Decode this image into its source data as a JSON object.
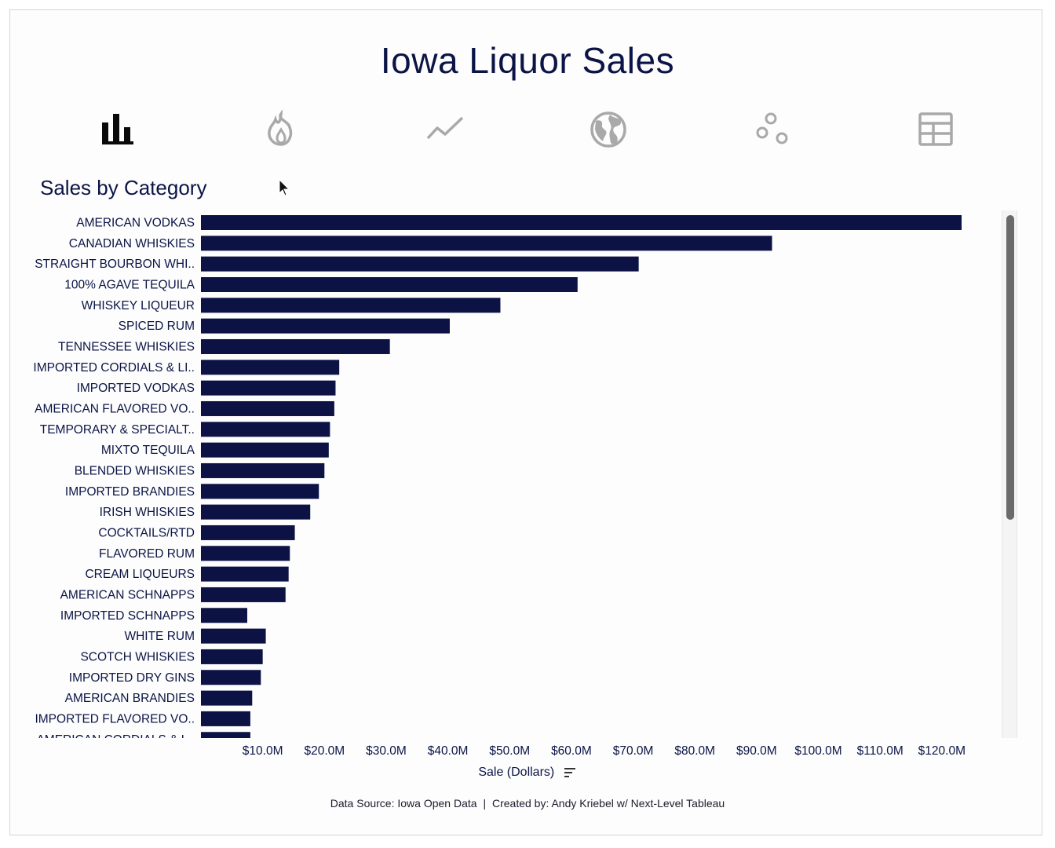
{
  "header": {
    "title": "Iowa Liquor Sales"
  },
  "nav": {
    "items": [
      {
        "icon": "bar-chart-icon",
        "active": true
      },
      {
        "icon": "flame-icon",
        "active": false
      },
      {
        "icon": "line-chart-icon",
        "active": false
      },
      {
        "icon": "globe-icon",
        "active": false
      },
      {
        "icon": "scatter-icon",
        "active": false
      },
      {
        "icon": "table-icon",
        "active": false
      }
    ],
    "active_color": "#0a0a0a",
    "inactive_color": "#a9a9a9"
  },
  "chart_section": {
    "subtitle": "Sales by Category"
  },
  "chart_data": {
    "type": "bar",
    "orientation": "horizontal",
    "title": "Sales by Category",
    "xlabel": "Sale (Dollars)",
    "ylabel": "",
    "xlim": [
      0,
      125000000
    ],
    "ticks": [
      10000000,
      20000000,
      30000000,
      40000000,
      50000000,
      60000000,
      70000000,
      80000000,
      90000000,
      100000000,
      110000000,
      120000000
    ],
    "tick_labels": [
      "$10.0M",
      "$20.0M",
      "$30.0M",
      "$40.0M",
      "$50.0M",
      "$60.0M",
      "$70.0M",
      "$80.0M",
      "$90.0M",
      "$100.0M",
      "$110.0M",
      "$120.0M"
    ],
    "bar_color": "#0c1244",
    "categories": [
      "AMERICAN VODKAS",
      "CANADIAN WHISKIES",
      "STRAIGHT BOURBON WHI..",
      "100% AGAVE TEQUILA",
      "WHISKEY LIQUEUR",
      "SPICED RUM",
      "TENNESSEE WHISKIES",
      "IMPORTED CORDIALS & LI..",
      "IMPORTED VODKAS",
      "AMERICAN FLAVORED VO..",
      "TEMPORARY & SPECIALT..",
      "MIXTO TEQUILA",
      "BLENDED WHISKIES",
      "IMPORTED BRANDIES",
      "IRISH WHISKIES",
      "COCKTAILS/RTD",
      "FLAVORED RUM",
      "CREAM LIQUEURS",
      "AMERICAN SCHNAPPS",
      "IMPORTED SCHNAPPS",
      "WHITE RUM",
      "SCOTCH WHISKIES",
      "IMPORTED DRY GINS",
      "AMERICAN BRANDIES",
      "IMPORTED FLAVORED VO..",
      "AMERICAN CORDIALS & L.."
    ],
    "values": [
      123200000,
      92500000,
      70900000,
      61000000,
      48500000,
      40300000,
      30600000,
      22400000,
      21800000,
      21600000,
      20900000,
      20700000,
      20000000,
      19100000,
      17700000,
      15200000,
      14400000,
      14200000,
      13700000,
      7500000,
      10500000,
      10000000,
      9700000,
      8300000,
      8000000,
      8000000
    ]
  },
  "footer": {
    "source": "Data Source: Iowa Open Data",
    "separator": "|",
    "credit": "Created by: Andy Kriebel w/ Next-Level Tableau"
  }
}
